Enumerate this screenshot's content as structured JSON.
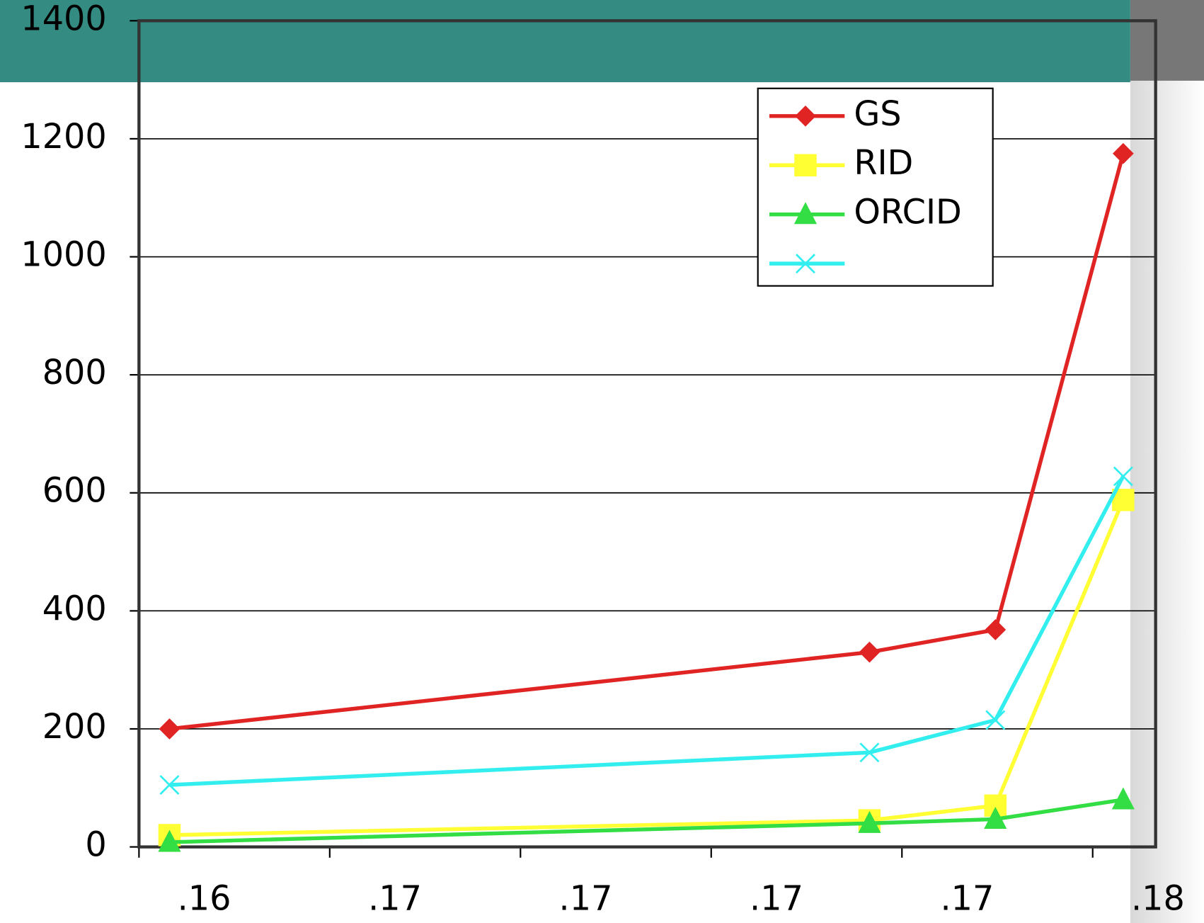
{
  "chart_data": {
    "type": "line",
    "x": [
      0.16,
      3.83,
      4.49,
      5.16
    ],
    "xlim": [
      0,
      5.33
    ],
    "xticks": [
      {
        "value": 0,
        "label": ".16"
      },
      {
        "value": 1,
        "label": ".17"
      },
      {
        "value": 2,
        "label": ".17"
      },
      {
        "value": 3,
        "label": ".17"
      },
      {
        "value": 4,
        "label": ".17"
      },
      {
        "value": 5,
        "label": ".18"
      }
    ],
    "ylim": [
      0,
      1400
    ],
    "yticks": [
      0,
      200,
      400,
      600,
      800,
      1000,
      1200,
      1400
    ],
    "grid": true,
    "legend": "top-right",
    "series": [
      {
        "name": "GS",
        "color": "#e02424",
        "marker": "diamond",
        "values": [
          200,
          330,
          368,
          1175
        ]
      },
      {
        "name": "RID",
        "color": "#ffff33",
        "marker": "square",
        "values": [
          20,
          45,
          70,
          588
        ]
      },
      {
        "name": "ORCID",
        "color": "#33dd44",
        "marker": "triangle",
        "values": [
          8,
          40,
          47,
          80
        ]
      },
      {
        "color": "#33eeee",
        "marker": "x",
        "values": [
          105,
          160,
          215,
          628
        ]
      }
    ]
  }
}
